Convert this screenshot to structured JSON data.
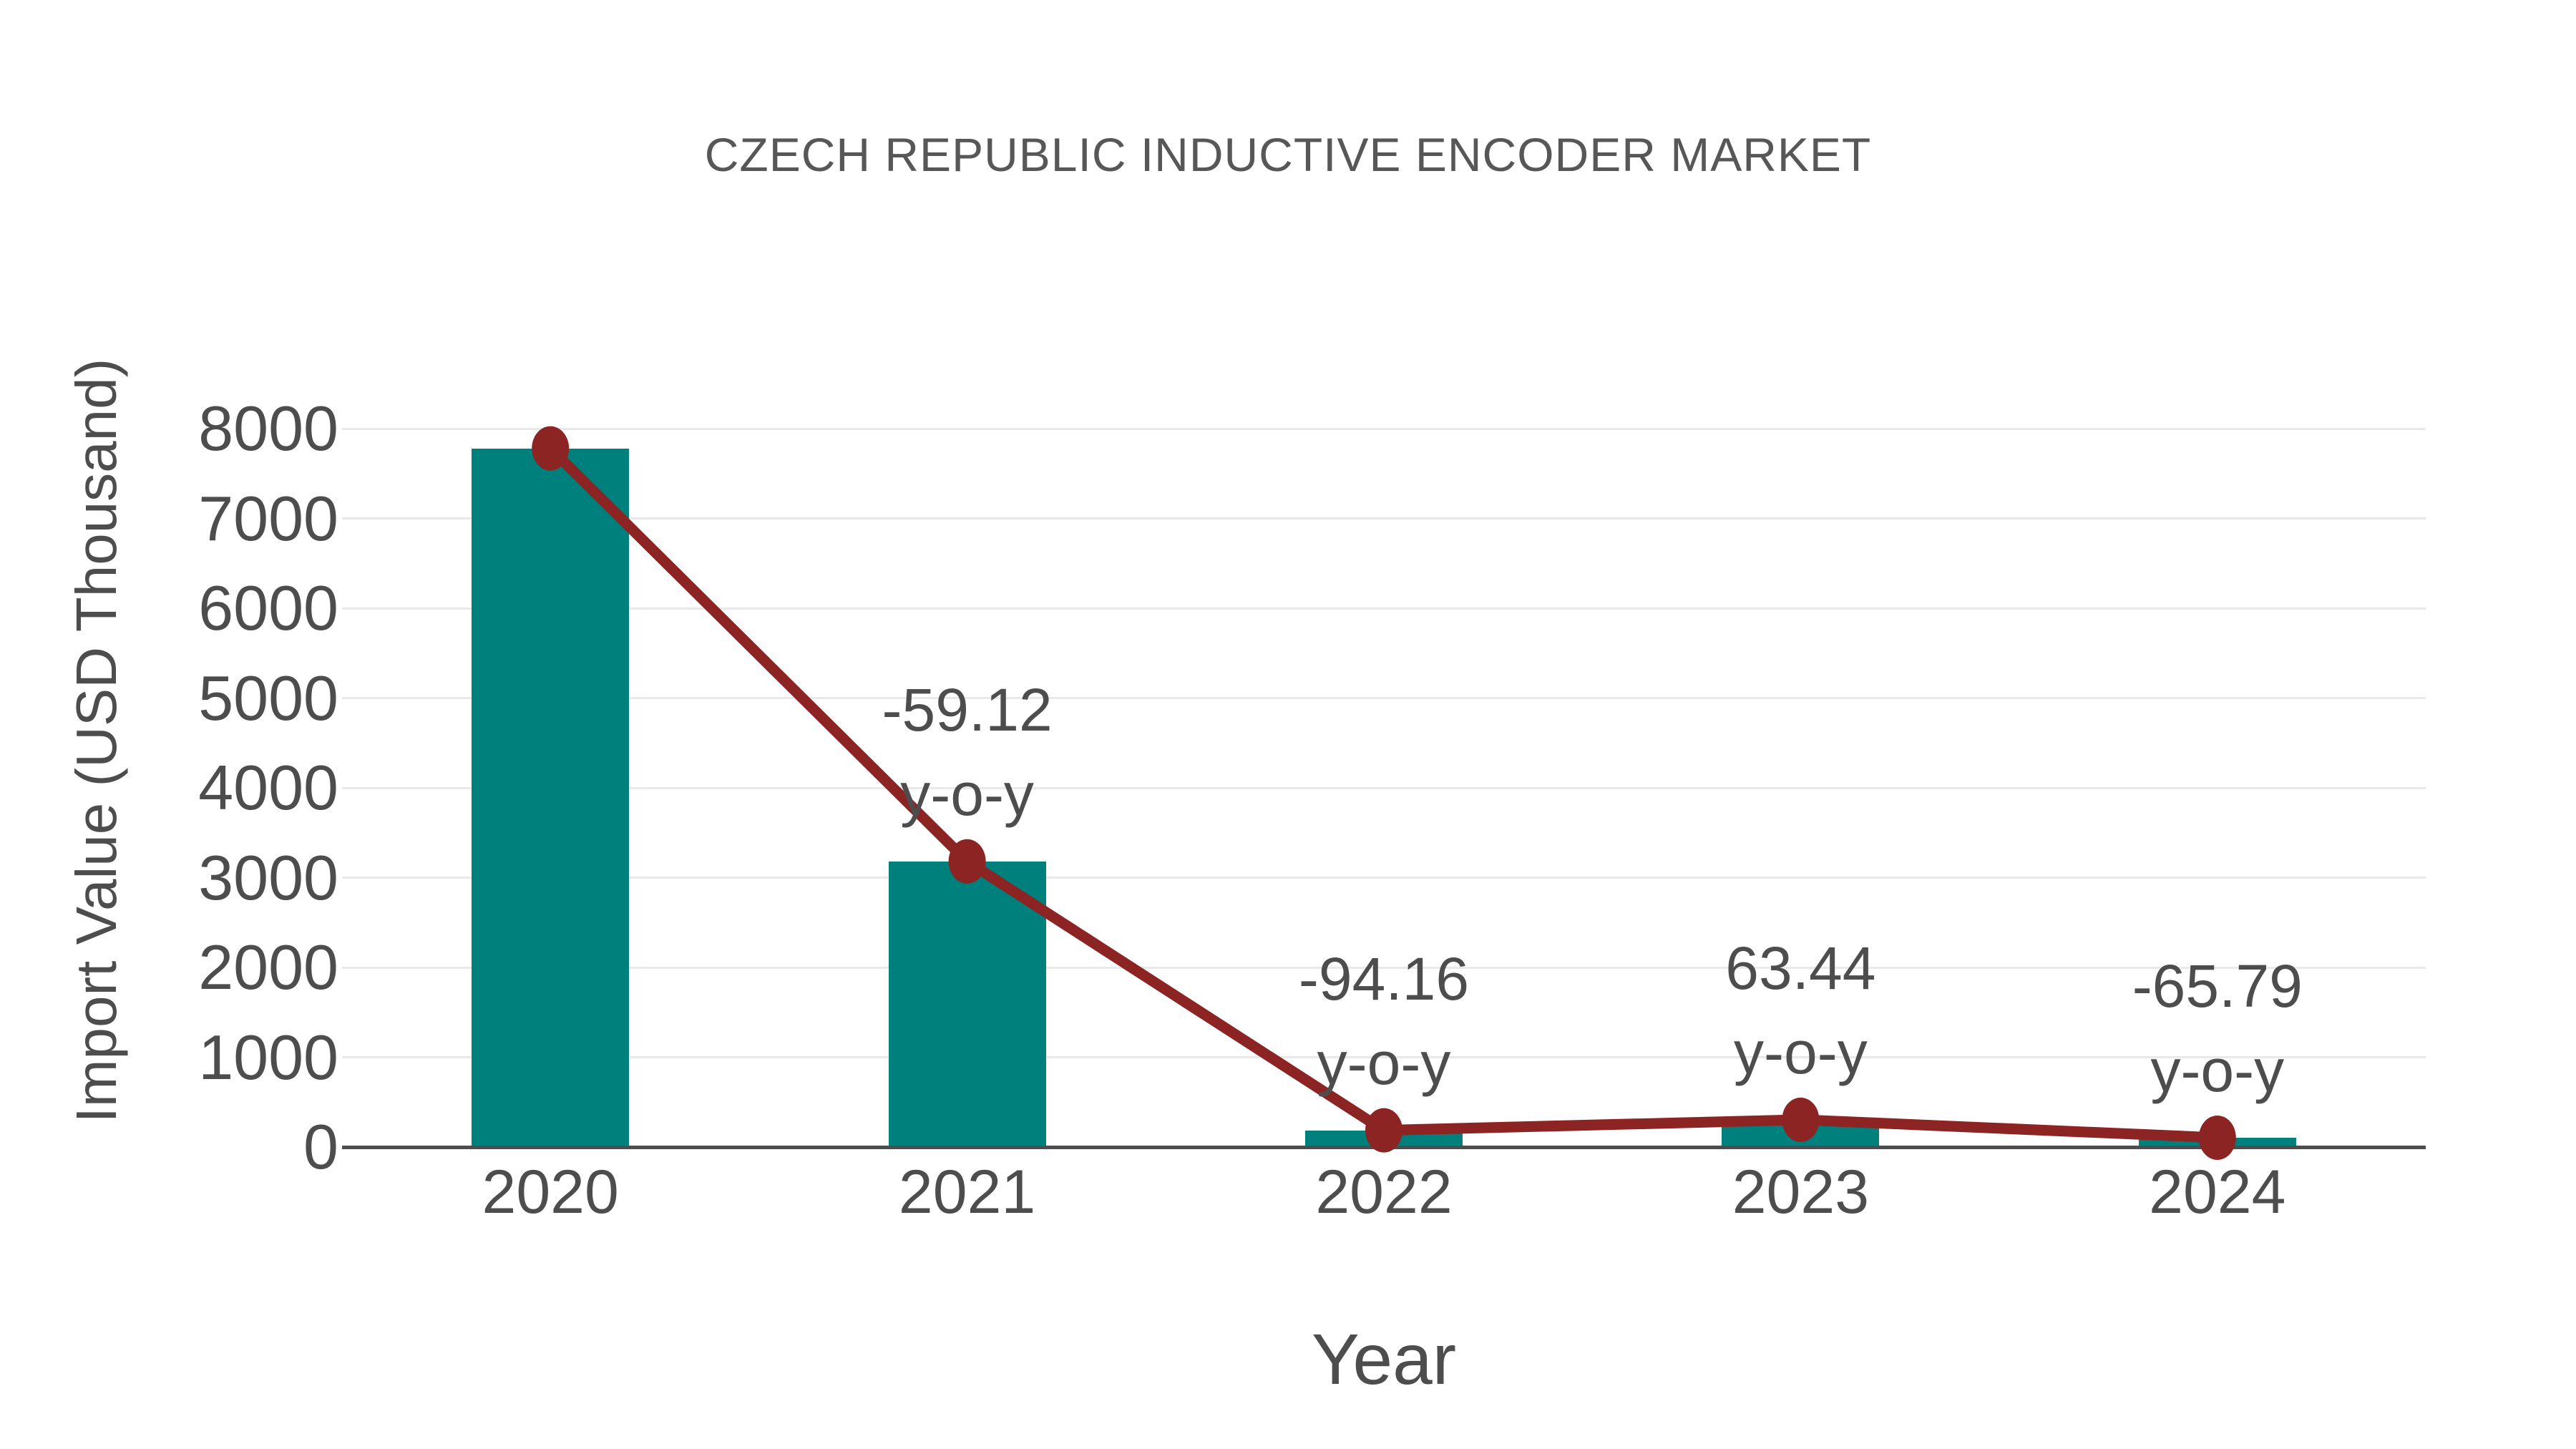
{
  "colors": {
    "background": "#ffffff",
    "bar": "#00807D",
    "line": "#8B2423",
    "marker": "#8B2423",
    "gridline": "#e9e9e9",
    "axis_line": "#4d4d4d",
    "tick_text": "#4d4d4d",
    "title_text": "#575757"
  },
  "chart_data": {
    "type": "bar",
    "title": "CZECH REPUBLIC INDUCTIVE ENCODER MARKET",
    "xlabel": "Year",
    "ylabel": "Import Value (USD Thousand)",
    "categories": [
      "2020",
      "2021",
      "2022",
      "2023",
      "2024"
    ],
    "series": [
      {
        "name": "Import Value (USD Thousand)",
        "type": "bar",
        "color": "#00807D",
        "values": [
          7780,
          3181,
          186,
          304,
          104
        ]
      },
      {
        "name": "Import Value trend",
        "type": "line",
        "color": "#8B2423",
        "marker": "circle",
        "values": [
          7780,
          3181,
          186,
          304,
          104
        ]
      }
    ],
    "point_annotations": [
      {
        "category": "2021",
        "line1": "-59.12",
        "line2": "y-o-y"
      },
      {
        "category": "2022",
        "line1": "-94.16",
        "line2": "y-o-y"
      },
      {
        "category": "2023",
        "line1": "63.44",
        "line2": "y-o-y"
      },
      {
        "category": "2024",
        "line1": "-65.79",
        "line2": "y-o-y"
      }
    ],
    "ylim": [
      0,
      8000
    ],
    "yticks": [
      0,
      1000,
      2000,
      3000,
      4000,
      5000,
      6000,
      7000,
      8000
    ],
    "grid": "horizontal",
    "legend": "none"
  }
}
